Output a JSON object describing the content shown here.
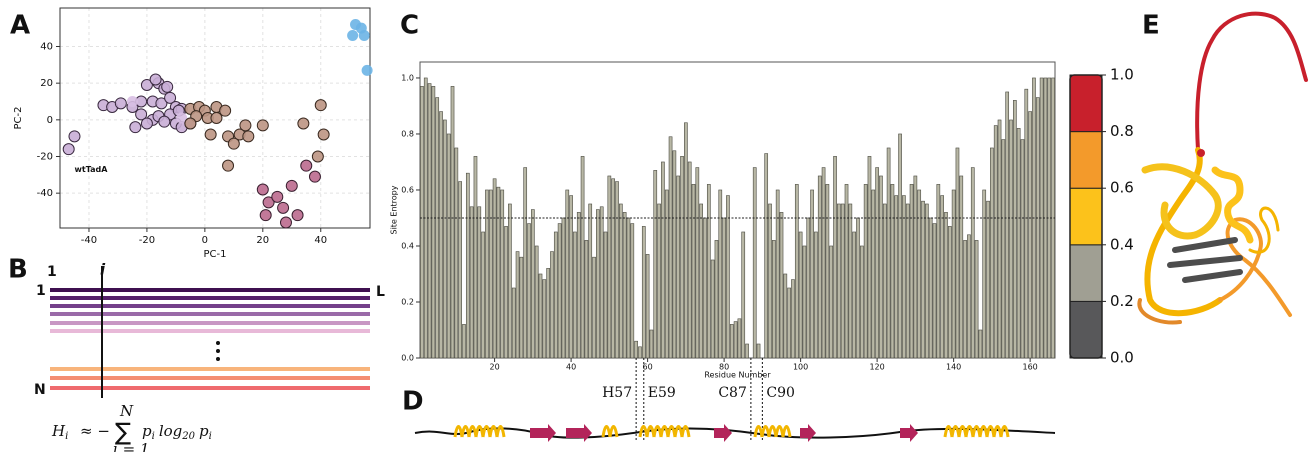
{
  "panel_labels": [
    "A",
    "B",
    "C",
    "D",
    "E"
  ],
  "schematic": {
    "col_first": "1",
    "col_i": "i",
    "row_first": "1",
    "row_last_col": "L",
    "row_last": "N"
  },
  "formula": {
    "left": "H",
    "left_sub": "i",
    "op": "≈ −",
    "sigma": "∑",
    "top": "N",
    "bottom": "i = 1",
    "body": "p",
    "body_sub": "i",
    "log": "log",
    "log_sub": "20",
    "tail": "p",
    "tail_sub": "i"
  },
  "chart_data": [
    {
      "type": "scatter",
      "xlabel": "PC-1",
      "ylabel": "PC-2",
      "xlim": [
        -50,
        57
      ],
      "ylim": [
        -59,
        61
      ],
      "xticks": [
        -40,
        -20,
        0,
        20,
        40
      ],
      "yticks": [
        -40,
        -20,
        0,
        20,
        40
      ],
      "grid": true,
      "series": [
        {
          "color": "#6bb4e6",
          "edgecolor": "none",
          "x": [
            52,
            54,
            51,
            55,
            56
          ],
          "y": [
            52,
            50,
            46,
            46,
            27
          ]
        },
        {
          "color": "#c9aed6",
          "edgecolor": "#3a2a40",
          "x": [
            -45,
            -47,
            -35,
            -32,
            -29,
            -25,
            -22,
            -20,
            -16,
            -14,
            -18,
            -15,
            -12,
            -10,
            -8,
            -22,
            -18,
            -16,
            -12,
            -24,
            -20,
            -14,
            -10,
            -8,
            -5,
            -9,
            -13,
            -17
          ],
          "y": [
            -9,
            -16,
            8,
            7,
            9,
            7,
            10,
            19,
            20,
            17,
            10,
            9,
            12,
            7,
            6,
            3,
            0,
            2,
            3,
            -4,
            -2,
            -1,
            -2,
            -4,
            -2,
            5,
            18,
            22
          ]
        },
        {
          "color": "#d8bfe3",
          "edgecolor": "none",
          "x": [
            -25,
            -8
          ],
          "y": [
            10,
            1
          ]
        },
        {
          "color": "#bd9583",
          "edgecolor": "#3a2a20",
          "x": [
            -5,
            -2,
            0,
            4,
            7,
            -3,
            1,
            4,
            -5,
            2,
            8,
            12,
            14,
            20,
            10,
            15,
            8,
            34,
            40,
            41,
            39
          ],
          "y": [
            6,
            7,
            5,
            7,
            5,
            2,
            1,
            1,
            -2,
            -8,
            -9,
            -8,
            -3,
            -3,
            -13,
            -9,
            -25,
            -2,
            8,
            -8,
            -20
          ]
        },
        {
          "color": "#bb6a8e",
          "edgecolor": "#3a2030",
          "x": [
            20,
            22,
            25,
            21,
            27,
            30,
            32,
            28,
            35,
            38
          ],
          "y": [
            -38,
            -45,
            -42,
            -52,
            -48,
            -36,
            -52,
            -56,
            -25,
            -31
          ]
        }
      ],
      "annotations": [
        {
          "text": "wtTadA",
          "x": -45,
          "y": -27
        }
      ]
    },
    {
      "type": "bar",
      "xlabel": "Residue Number",
      "ylabel": "Site Entropy",
      "color": "#b8b7a5",
      "xlim": [
        0.5,
        166.5
      ],
      "ylim": [
        0,
        1.057
      ],
      "threshold": 0.5,
      "xticks": [
        20,
        40,
        60,
        80,
        100,
        120,
        140,
        160
      ],
      "yticks": [
        {
          "value": 0,
          "label": "0.0"
        },
        {
          "value": 0.2,
          "label": "0.2"
        },
        {
          "value": 0.4,
          "label": "0.4"
        },
        {
          "value": 0.6,
          "label": "0.6"
        },
        {
          "value": 0.8,
          "label": "0.8"
        },
        {
          "value": 1,
          "label": "1.0"
        }
      ],
      "x": [
        1,
        2,
        3,
        4,
        5,
        6,
        7,
        8,
        9,
        10,
        11,
        12,
        13,
        14,
        15,
        16,
        17,
        18,
        19,
        20,
        21,
        22,
        23,
        24,
        25,
        26,
        27,
        28,
        29,
        30,
        31,
        32,
        33,
        34,
        35,
        36,
        37,
        38,
        39,
        40,
        41,
        42,
        43,
        44,
        45,
        46,
        47,
        48,
        49,
        50,
        51,
        52,
        53,
        54,
        55,
        56,
        57,
        58,
        59,
        60,
        61,
        62,
        63,
        64,
        65,
        66,
        67,
        68,
        69,
        70,
        71,
        72,
        73,
        74,
        75,
        76,
        77,
        78,
        79,
        80,
        81,
        82,
        83,
        84,
        85,
        86,
        87,
        88,
        89,
        90,
        91,
        92,
        93,
        94,
        95,
        96,
        97,
        98,
        99,
        100,
        101,
        102,
        103,
        104,
        105,
        106,
        107,
        108,
        109,
        110,
        111,
        112,
        113,
        114,
        115,
        116,
        117,
        118,
        119,
        120,
        121,
        122,
        123,
        124,
        125,
        126,
        127,
        128,
        129,
        130,
        131,
        132,
        133,
        134,
        135,
        136,
        137,
        138,
        139,
        140,
        141,
        142,
        143,
        144,
        145,
        146,
        147,
        148,
        149,
        150,
        151,
        152,
        153,
        154,
        155,
        156,
        157,
        158,
        159,
        160,
        161,
        162,
        163,
        164,
        165,
        166
      ],
      "values": [
        0.97,
        1.0,
        0.98,
        0.97,
        0.93,
        0.88,
        0.85,
        0.8,
        0.97,
        0.75,
        0.63,
        0.12,
        0.66,
        0.54,
        0.72,
        0.54,
        0.45,
        0.6,
        0.6,
        0.64,
        0.61,
        0.6,
        0.47,
        0.55,
        0.25,
        0.38,
        0.36,
        0.68,
        0.48,
        0.53,
        0.4,
        0.3,
        0.28,
        0.32,
        0.38,
        0.45,
        0.48,
        0.5,
        0.6,
        0.58,
        0.45,
        0.52,
        0.72,
        0.42,
        0.55,
        0.36,
        0.53,
        0.54,
        0.45,
        0.65,
        0.64,
        0.63,
        0.55,
        0.52,
        0.5,
        0.48,
        0.06,
        0.04,
        0.47,
        0.37,
        0.1,
        0.67,
        0.55,
        0.7,
        0.6,
        0.79,
        0.74,
        0.65,
        0.72,
        0.84,
        0.7,
        0.62,
        0.68,
        0.55,
        0.5,
        0.62,
        0.35,
        0.42,
        0.6,
        0.5,
        0.58,
        0.12,
        0.13,
        0.14,
        0.45,
        0.05,
        0.0,
        0.68,
        0.05,
        0.0,
        0.73,
        0.55,
        0.42,
        0.6,
        0.52,
        0.3,
        0.25,
        0.28,
        0.62,
        0.45,
        0.4,
        0.5,
        0.6,
        0.45,
        0.65,
        0.68,
        0.62,
        0.4,
        0.72,
        0.55,
        0.55,
        0.62,
        0.55,
        0.45,
        0.5,
        0.4,
        0.62,
        0.72,
        0.6,
        0.68,
        0.65,
        0.55,
        0.75,
        0.62,
        0.58,
        0.8,
        0.58,
        0.55,
        0.62,
        0.65,
        0.6,
        0.56,
        0.55,
        0.5,
        0.48,
        0.62,
        0.58,
        0.52,
        0.47,
        0.6,
        0.75,
        0.65,
        0.42,
        0.44,
        0.68,
        0.42,
        0.1,
        0.6,
        0.56,
        0.75,
        0.83,
        0.85,
        0.78,
        0.95,
        0.85,
        0.92,
        0.82,
        0.78,
        0.96,
        0.88,
        1.0,
        0.93,
        1.0,
        1.0,
        1.0,
        1.0
      ],
      "annotations": [
        {
          "text": "H57",
          "x": 57
        },
        {
          "text": "E59",
          "x": 59
        },
        {
          "text": "C87",
          "x": 87
        },
        {
          "text": "C90",
          "x": 90
        }
      ]
    },
    {
      "type": "colorbar",
      "bounds": [
        0,
        0.2,
        0.4,
        0.6,
        0.8,
        1
      ],
      "colors": [
        "#58585a",
        "#a09f93",
        "#fcc21b",
        "#f39a2b",
        "#c8202c"
      ],
      "ylim": [
        0,
        1
      ],
      "yticks": [
        {
          "value": 0,
          "label": "0.0"
        },
        {
          "value": 0.2,
          "label": "0.2"
        },
        {
          "value": 0.4,
          "label": "0.4"
        },
        {
          "value": 0.6,
          "label": "0.6"
        },
        {
          "value": 0.8,
          "label": "0.8"
        },
        {
          "value": 1,
          "label": "1.0"
        }
      ]
    }
  ]
}
